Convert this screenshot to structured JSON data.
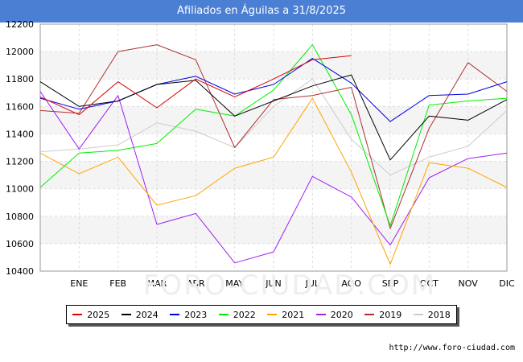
{
  "title": "Afiliados en Águilas a 31/8/2025",
  "source": "http://www.foro-ciudad.com",
  "watermark": "FORO-CIUDAD.COM",
  "chart_data": {
    "type": "line",
    "categories": [
      "",
      "ENE",
      "FEB",
      "MAR",
      "ABR",
      "MAY",
      "JUN",
      "JUL",
      "AGO",
      "SEP",
      "OCT",
      "NOV",
      "DIC"
    ],
    "ylim": [
      10400,
      12200
    ],
    "yticks": [
      10400,
      10600,
      10800,
      11000,
      11200,
      11400,
      11600,
      11800,
      12000,
      12200
    ],
    "grid": true,
    "legend_position": "bottom",
    "series": [
      {
        "name": "2018",
        "color": "#cccccc",
        "values": [
          11270,
          11290,
          11320,
          11480,
          11420,
          11300,
          11600,
          11800,
          11360,
          11100,
          11230,
          11310,
          11570
        ]
      },
      {
        "name": "2019",
        "color": "#b03030",
        "values": [
          11570,
          11550,
          12000,
          12050,
          11940,
          11300,
          11650,
          11680,
          11740,
          10710,
          11440,
          11920,
          11710
        ]
      },
      {
        "name": "2020",
        "color": "#a020f0",
        "values": [
          11710,
          11290,
          11680,
          10740,
          10820,
          10460,
          10540,
          11090,
          10940,
          10590,
          11080,
          11220,
          11260
        ]
      },
      {
        "name": "2021",
        "color": "#ffa500",
        "values": [
          11260,
          11110,
          11230,
          10880,
          10950,
          11150,
          11230,
          11660,
          11120,
          10450,
          11190,
          11150,
          11010
        ]
      },
      {
        "name": "2022",
        "color": "#00ee00",
        "values": [
          11010,
          11260,
          11280,
          11330,
          11580,
          11530,
          11720,
          12050,
          11540,
          10730,
          11610,
          11640,
          11660
        ]
      },
      {
        "name": "2023",
        "color": "#0000dd",
        "values": [
          11660,
          11580,
          11640,
          11760,
          11820,
          11690,
          11760,
          11950,
          11770,
          11490,
          11680,
          11690,
          11780
        ]
      },
      {
        "name": "2024",
        "color": "#000000",
        "values": [
          11780,
          11600,
          11640,
          11760,
          11790,
          11530,
          11640,
          11750,
          11830,
          11210,
          11530,
          11500,
          11650
        ]
      },
      {
        "name": "2025",
        "color": "#dd0000",
        "values": [
          11670,
          11540,
          11780,
          11590,
          11800,
          11670,
          11800,
          11940,
          11970,
          null,
          null,
          null,
          null
        ]
      }
    ]
  }
}
